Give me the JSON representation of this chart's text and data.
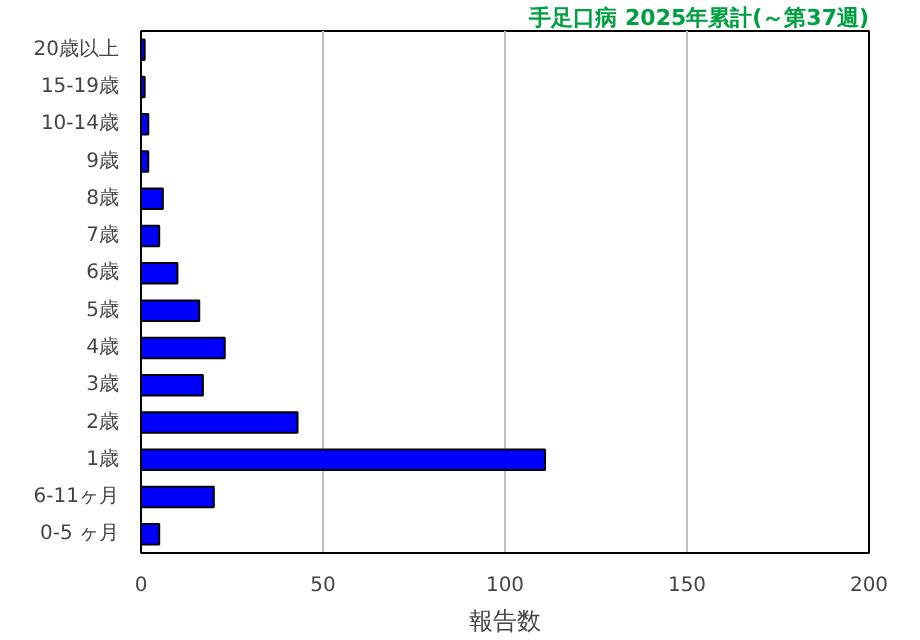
{
  "chart_data": {
    "type": "bar",
    "orientation": "horizontal",
    "title": "手足口病 2025年累計(～第37週)",
    "xlabel": "報告数",
    "categories": [
      "20歳以上",
      "15-19歳",
      "10-14歳",
      "9歳",
      "8歳",
      "7歳",
      "6歳",
      "5歳",
      "4歳",
      "3歳",
      "2歳",
      "1歳",
      "6-11ヶ月",
      "0-5 ヶ月"
    ],
    "values": [
      1,
      1,
      2,
      2,
      6,
      5,
      10,
      16,
      23,
      17,
      43,
      111,
      20,
      5
    ],
    "color": "#0000ff",
    "xlim": [
      0,
      200
    ],
    "xticks": [
      0,
      50,
      100,
      150,
      200
    ],
    "grid": "x"
  }
}
